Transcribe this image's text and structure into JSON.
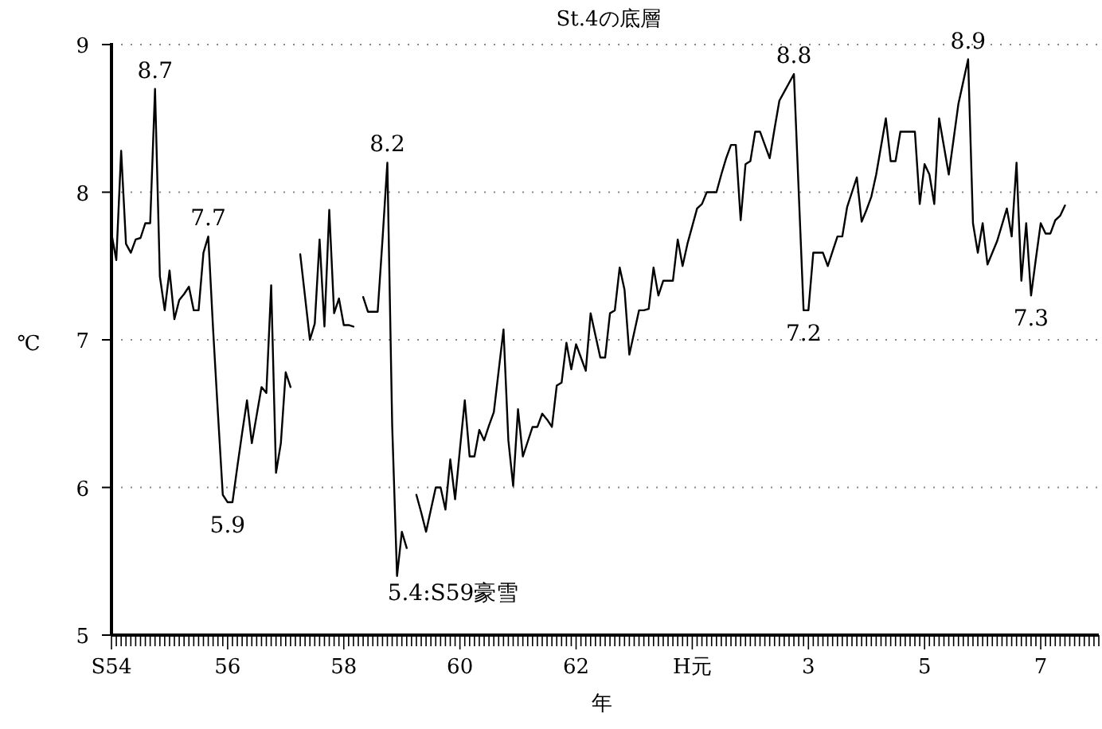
{
  "chart_data": {
    "type": "line",
    "title": "St.4の底層",
    "xlabel": "年",
    "ylabel": "℃",
    "ylim": [
      5,
      9
    ],
    "yticks": [
      5,
      6,
      7,
      8,
      9
    ],
    "grid": "y",
    "marker": "none",
    "line_style": "solid",
    "categories": [
      "S54",
      null,
      null,
      null,
      null,
      null,
      null,
      null,
      null,
      null,
      null,
      null,
      null,
      null,
      null,
      null,
      null,
      null,
      null,
      null,
      null,
      null,
      null,
      null,
      "56",
      null,
      null,
      null,
      null,
      null,
      null,
      null,
      null,
      null,
      null,
      null,
      null,
      null,
      null,
      null,
      null,
      null,
      null,
      null,
      null,
      null,
      null,
      null,
      "58",
      null,
      null,
      null,
      null,
      null,
      null,
      null,
      null,
      null,
      null,
      null,
      null,
      null,
      null,
      null,
      null,
      null,
      null,
      null,
      null,
      null,
      null,
      null,
      "60",
      null,
      null,
      null,
      null,
      null,
      null,
      null,
      null,
      null,
      null,
      null,
      null,
      null,
      null,
      null,
      null,
      null,
      null,
      null,
      null,
      null,
      null,
      null,
      "62",
      null,
      null,
      null,
      null,
      null,
      null,
      null,
      null,
      null,
      null,
      null,
      null,
      null,
      null,
      null,
      null,
      null,
      null,
      null,
      null,
      null,
      null,
      null,
      "H元",
      null,
      null,
      null,
      null,
      null,
      null,
      null,
      null,
      null,
      null,
      null,
      null,
      null,
      null,
      null,
      null,
      null,
      null,
      null,
      null,
      null,
      null,
      null,
      "3",
      null,
      null,
      null,
      null,
      null,
      null,
      null,
      null,
      null,
      null,
      null,
      null,
      null,
      null,
      null,
      null,
      null,
      null,
      null,
      null,
      null,
      null,
      null,
      "5",
      null,
      null,
      null,
      null,
      null,
      null,
      null,
      null,
      null,
      null,
      null,
      null,
      null,
      null,
      null,
      null,
      null,
      null,
      null,
      null,
      null,
      null,
      null,
      "7",
      null,
      null,
      null,
      null,
      null,
      null,
      null,
      null,
      null,
      null,
      null
    ],
    "series": [
      {
        "color": "#000000",
        "values": [
          7.72,
          7.54,
          8.28,
          7.65,
          7.59,
          7.68,
          7.69,
          7.79,
          7.79,
          8.7,
          7.43,
          7.2,
          7.47,
          7.14,
          7.27,
          7.31,
          7.36,
          7.2,
          7.2,
          7.59,
          7.7,
          7.07,
          6.5,
          5.95,
          5.9,
          5.9,
          6.14,
          6.37,
          6.59,
          6.3,
          6.49,
          6.68,
          6.64,
          7.37,
          6.1,
          6.3,
          6.78,
          6.68,
          null,
          7.58,
          7.29,
          7.0,
          7.11,
          7.68,
          7.09,
          7.88,
          7.18,
          7.28,
          7.1,
          7.1,
          7.09,
          null,
          7.29,
          7.19,
          7.19,
          7.19,
          7.68,
          8.2,
          6.42,
          5.4,
          5.7,
          5.59,
          null,
          5.95,
          5.83,
          5.7,
          5.85,
          6.0,
          6.0,
          5.85,
          6.19,
          5.92,
          6.26,
          6.59,
          6.21,
          6.21,
          6.39,
          6.32,
          6.42,
          6.51,
          6.79,
          7.07,
          6.32,
          6.01,
          6.53,
          6.21,
          6.31,
          6.41,
          6.41,
          6.5,
          6.46,
          6.41,
          6.69,
          6.71,
          6.98,
          6.8,
          6.97,
          6.88,
          6.79,
          7.18,
          7.03,
          6.88,
          6.88,
          7.18,
          7.2,
          7.49,
          7.34,
          6.9,
          7.05,
          7.2,
          7.2,
          7.21,
          7.49,
          7.3,
          7.4,
          7.4,
          7.4,
          7.68,
          7.5,
          7.65,
          7.77,
          7.89,
          7.92,
          8.0,
          8.0,
          8.0,
          8.12,
          8.23,
          8.32,
          8.32,
          7.81,
          8.19,
          8.21,
          8.41,
          8.41,
          8.32,
          8.23,
          8.43,
          8.62,
          8.68,
          8.74,
          8.8,
          8.0,
          7.2,
          7.2,
          7.59,
          7.59,
          7.59,
          7.5,
          7.6,
          7.7,
          7.7,
          7.9,
          8.0,
          8.1,
          7.8,
          7.88,
          7.97,
          8.12,
          8.31,
          8.5,
          8.21,
          8.21,
          8.41,
          8.41,
          8.41,
          8.41,
          7.92,
          8.19,
          8.12,
          7.92,
          8.5,
          8.31,
          8.12,
          8.36,
          8.6,
          8.75,
          8.9,
          7.79,
          7.59,
          7.79,
          7.51,
          7.59,
          7.67,
          7.78,
          7.89,
          7.7,
          8.2,
          7.4,
          7.79,
          7.3,
          7.55,
          7.79,
          7.72,
          7.72,
          7.81,
          7.84,
          7.91,
          null,
          null,
          null,
          null,
          null,
          null
        ]
      }
    ],
    "annotations": [
      {
        "text": "8.7",
        "y": 8.7
      },
      {
        "text": "7.7",
        "y": 7.7
      },
      {
        "text": "5.9",
        "y": 5.9
      },
      {
        "text": "8.2",
        "y": 8.2
      },
      "5.4:S59豪雪",
      {
        "text": "8.8",
        "y": 8.8
      },
      {
        "text": "7.2",
        "y": 7.2
      },
      {
        "text": "8.9",
        "y": 8.9
      },
      {
        "text": "7.3",
        "y": 7.3
      }
    ]
  }
}
